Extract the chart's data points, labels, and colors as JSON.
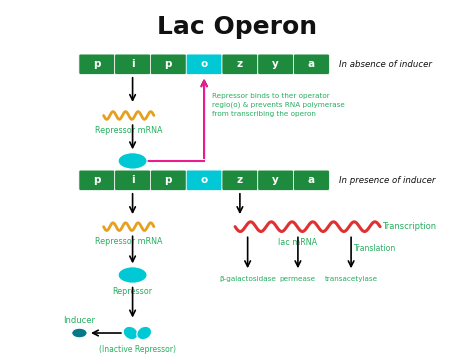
{
  "title": "Lac Operon",
  "title_fontsize": 18,
  "title_fontweight": "bold",
  "bg_color": "#ffffff",
  "green_dark": "#1e8a3e",
  "cyan_color": "#00c8d4",
  "cyan_dark": "#007a8a",
  "pink_color": "#e91e8c",
  "orange_color": "#e6a020",
  "red_color": "#e03030",
  "text_green": "#27ae60",
  "text_dark": "#111111",
  "operon_labels": [
    "p",
    "i",
    "p",
    "o",
    "z",
    "y",
    "a"
  ],
  "absence_text": "In absence of inducer",
  "presence_text": "In presence of inducer",
  "repressor_text": "Repressor binds to ther operator\nregio(o) & prevents RNA polymerase\nfrom transcribing the operon",
  "transcription_label": "Transcription",
  "translation_label": "Translation",
  "repressor_mrna": "Repressor mRNA",
  "repressor_label": "Repressor",
  "lac_mrna": "lac mRNA",
  "beta_gal": "β-galactosidase",
  "permease": "permease",
  "transacetylase": "transacetylase",
  "inducer_label": "Inducer",
  "inactive_repressor": "(Inactive Repressor)"
}
